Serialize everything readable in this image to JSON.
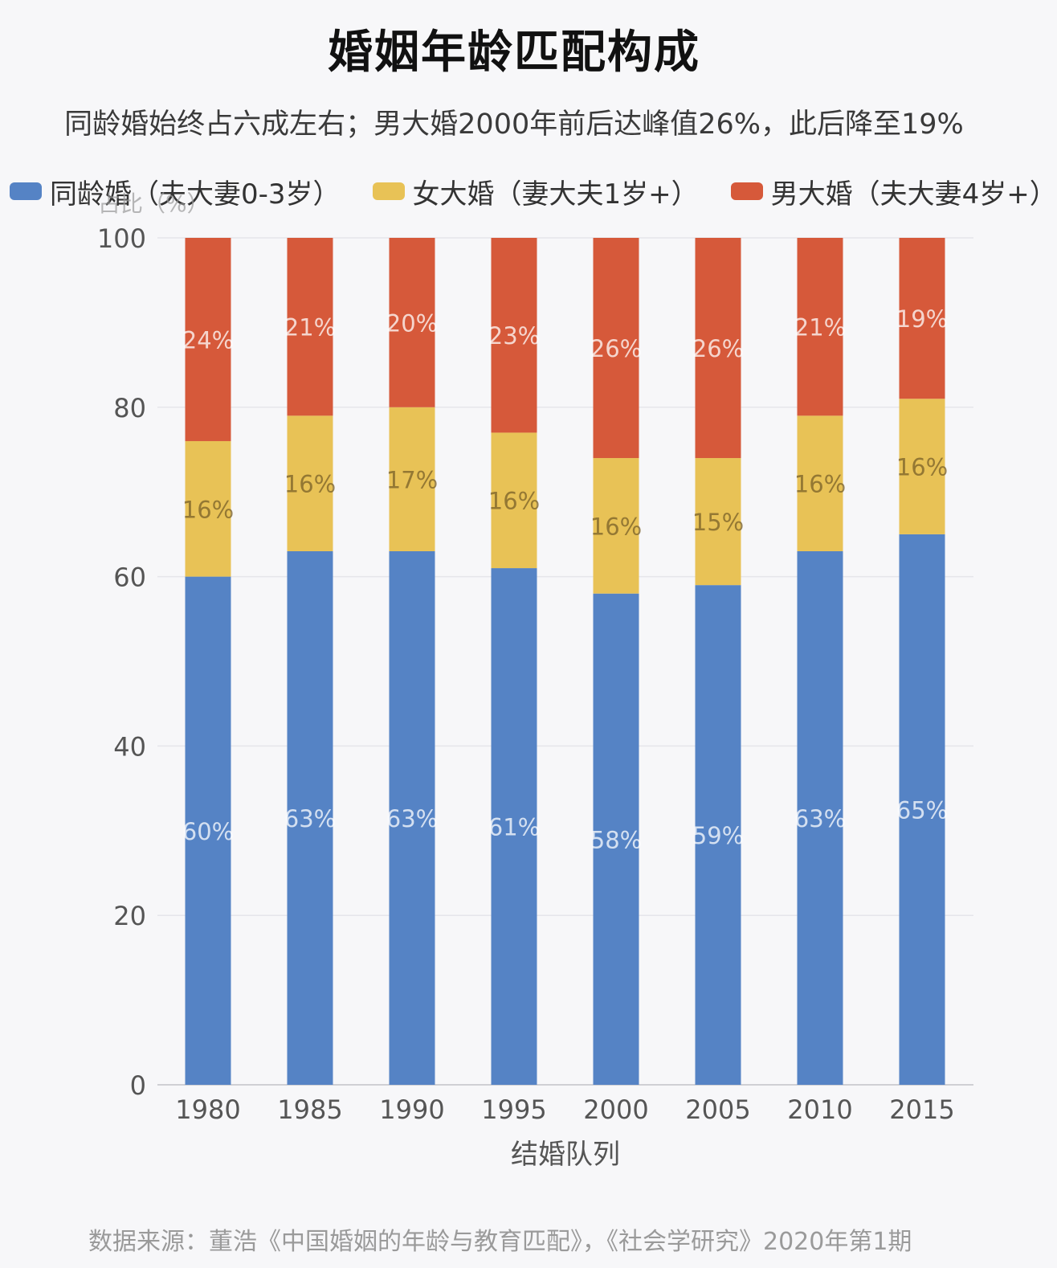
{
  "title": "婚姻年龄匹配构成",
  "subtitle": "同龄婚始终占六成左右；男大婚2000年前后达峰值26%，此后降至19%",
  "source": "数据来源：董浩《中国婚姻的年龄与教育匹配》，《社会学研究》2020年第1期",
  "colors": {
    "same_age": "#5583c5",
    "wife_older": "#e8c256",
    "husband_older": "#d6593a"
  },
  "chart_data": {
    "type": "bar",
    "stacked": true,
    "categories": [
      "1980",
      "1985",
      "1990",
      "1995",
      "2000",
      "2005",
      "2010",
      "2015"
    ],
    "series": [
      {
        "name": "同龄婚（夫大妻0-3岁）",
        "values": [
          60,
          63,
          63,
          61,
          58,
          59,
          63,
          65
        ],
        "labels": [
          "60%",
          "63%",
          "63%",
          "61%",
          "58%",
          "59%",
          "63%",
          "65%"
        ]
      },
      {
        "name": "女大婚（妻大夫1岁+）",
        "values": [
          16,
          16,
          17,
          16,
          16,
          15,
          16,
          16
        ],
        "labels": [
          "16%",
          "16%",
          "17%",
          "16%",
          "16%",
          "15%",
          "16%",
          "16%"
        ]
      },
      {
        "name": "男大婚（夫大妻4岁+）",
        "values": [
          24,
          21,
          20,
          23,
          26,
          26,
          21,
          19
        ],
        "labels": [
          "24%",
          "21%",
          "20%",
          "23%",
          "26%",
          "26%",
          "21%",
          "19%"
        ]
      }
    ],
    "ylabel": "占比（%）",
    "xlabel": "结婚队列",
    "ylim": [
      0,
      100
    ],
    "yticks": [
      "0",
      "20",
      "40",
      "60",
      "80",
      "100"
    ],
    "grid": true,
    "legend_position": "top"
  }
}
